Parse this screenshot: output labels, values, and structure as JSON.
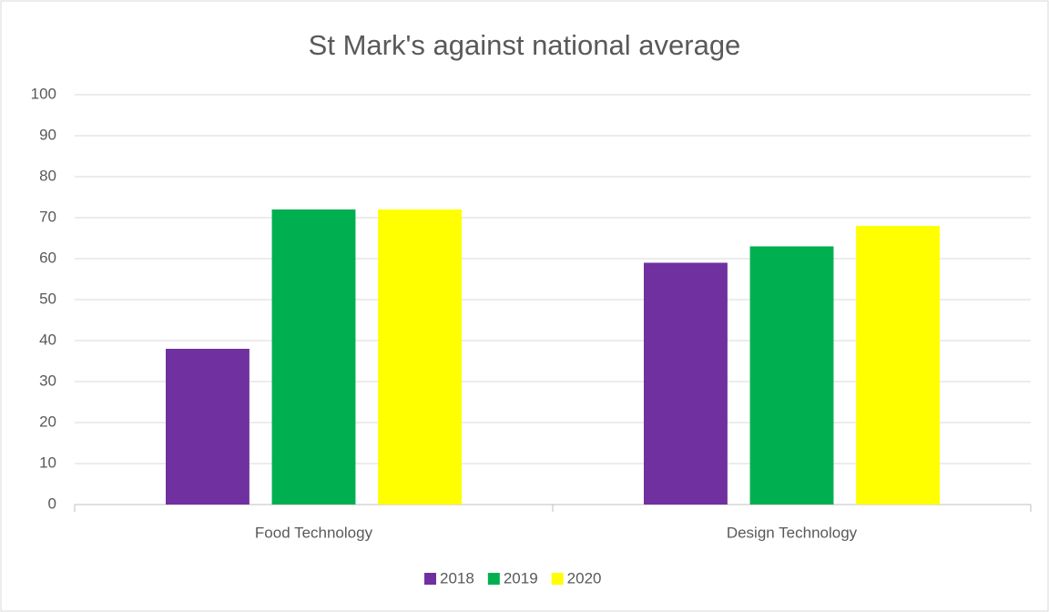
{
  "chart_data": {
    "type": "bar",
    "title": "St Mark's against national average",
    "categories": [
      "Food Technology",
      "Design Technology"
    ],
    "series": [
      {
        "name": "2018",
        "color": "#7030a0",
        "values": [
          38,
          59
        ]
      },
      {
        "name": "2019",
        "color": "#00b050",
        "values": [
          72,
          63
        ]
      },
      {
        "name": "2020",
        "color": "#ffff00",
        "values": [
          72,
          68
        ]
      }
    ],
    "ylim": [
      0,
      100
    ],
    "yticks": [
      0,
      10,
      20,
      30,
      40,
      50,
      60,
      70,
      80,
      90,
      100
    ],
    "grid": true,
    "legend": "bottom"
  }
}
